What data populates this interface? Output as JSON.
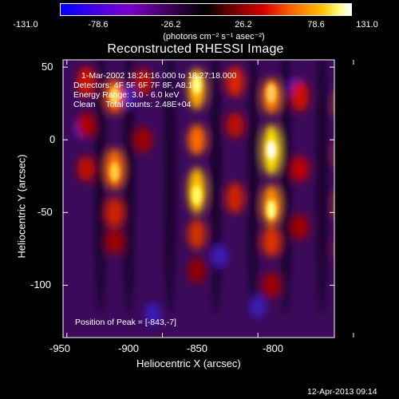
{
  "chart_data": {
    "type": "heatmap",
    "title": "Reconstructed RHESSI Image",
    "xlabel": "Heliocentric X (arcsec)",
    "ylabel": "Heliocentric Y (arcsec)",
    "xlim": [
      -952,
      -810
    ],
    "ylim": [
      -136,
      55
    ],
    "xticks": [
      -950,
      -900,
      -850,
      -800
    ],
    "yticks": [
      50,
      0,
      -50,
      -100
    ],
    "colorbar": {
      "ticks": [
        "-131.0",
        "-78.6",
        "-26.2",
        "26.2",
        "78.6",
        "131.0"
      ],
      "range": [
        -131.0,
        131.0
      ],
      "unit_label": "(photons cm⁻² s⁻¹ asec⁻²)",
      "colormap": [
        "#0000ff",
        "#7b00c8",
        "#000000",
        "#c80000",
        "#ff8000",
        "#ffff00",
        "#ffffff"
      ]
    },
    "annotations": {
      "time": "1-Mar-2002 18:24:16.000 to 18:27:18.000",
      "detectors": "Detectors: 4F 5F 6F 7F 8F, A8.1",
      "energy": "Energy Range: 3.0 - 6.0 keV",
      "method": "Clean",
      "counts": "Total counts: 2.48E+04",
      "peak": "Position of Peak = [-843,-7]"
    },
    "peak_position": [
      -843,
      -7
    ],
    "bright_stripes_x": [
      -940,
      -925,
      -910,
      -882,
      -862,
      -843,
      -828,
      -805
    ],
    "grid": false
  },
  "footer": {
    "timestamp": "12-Apr-2013 09:14"
  }
}
